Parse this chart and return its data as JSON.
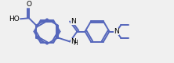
{
  "bg_color": "#f0f0f0",
  "bond_color": "#5566bb",
  "bond_lw": 1.4,
  "text_color": "#000000",
  "fs": 6.5,
  "fs_small": 5.5,
  "figsize": [
    2.22,
    0.81
  ],
  "dpi": 100,
  "xlim": [
    0,
    2.22
  ],
  "ylim": [
    0,
    0.81
  ]
}
